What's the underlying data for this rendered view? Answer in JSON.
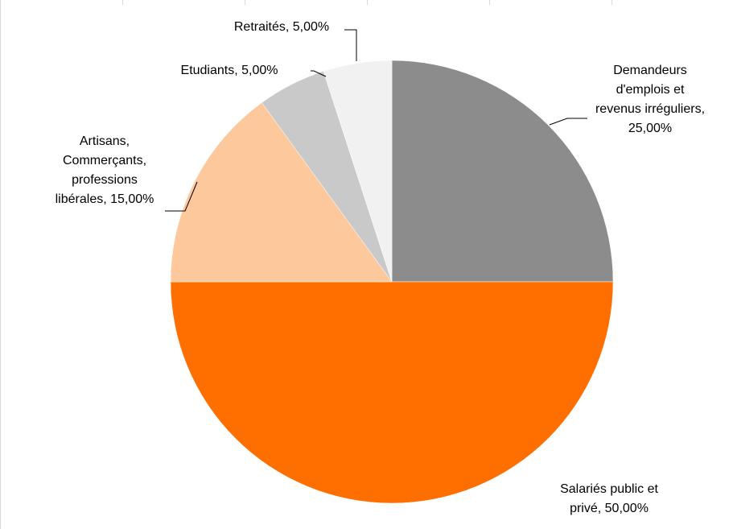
{
  "chart_data": {
    "type": "pie",
    "title": "",
    "slices": [
      {
        "label_lines": [
          "Demandeurs",
          "d'emplois et",
          "revenus irréguliers,",
          "25,00%"
        ],
        "value": 25.0,
        "color": "#8c8c8c"
      },
      {
        "label_lines": [
          "Salariés public et",
          "privé, 50,00%"
        ],
        "value": 50.0,
        "color": "#ff6f00"
      },
      {
        "label_lines": [
          "Artisans,",
          "Commerçants,",
          "professions",
          "libérales, 15,00%"
        ],
        "value": 15.0,
        "color": "#fdc89b"
      },
      {
        "label_lines": [
          "Etudiants, 5,00%"
        ],
        "value": 5.0,
        "color": "#c9c9c9"
      },
      {
        "label_lines": [
          "Retraités, 5,00%"
        ],
        "value": 5.0,
        "color": "#f1f1f1"
      }
    ],
    "legend": "none",
    "grid": false
  }
}
